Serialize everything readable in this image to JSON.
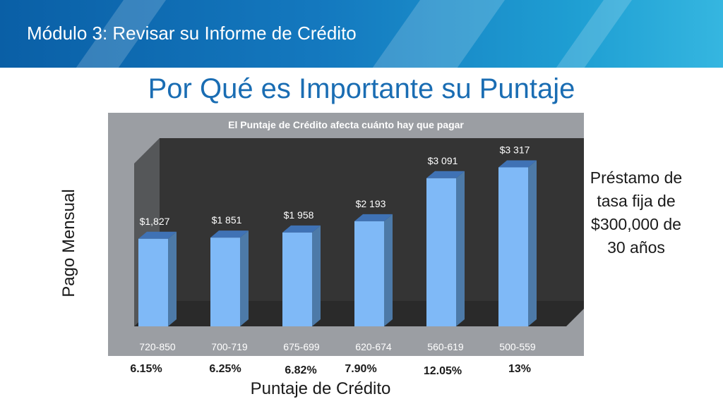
{
  "header": {
    "module_title": "Módulo 3: Revisar su Informe de Crédito"
  },
  "slide": {
    "title": "Por Qué es Importante su Puntaje",
    "side_note": "Préstamo de tasa fija de $300,000 de 30 años",
    "rates": [
      "6.15%",
      "6.25%",
      "6.82%",
      "7.90%",
      "12.05%",
      "13%"
    ]
  },
  "colors": {
    "bar_front": "#7fb9f7",
    "bar_side": "#4d7aa8",
    "bar_top": "#3f72b5",
    "plot_back": "#343434",
    "plot_floor": "#2a2a2a",
    "panel": "#9b9ea3",
    "title_blue": "#1a6db3"
  },
  "chart_data": {
    "type": "bar",
    "title": "El Puntaje de Crédito afecta cuánto hay que pagar",
    "xlabel": "Puntaje de Crédito",
    "ylabel": "Pago Mensual",
    "categories": [
      "720-850",
      "700-719",
      "675-699",
      "620-674",
      "560-619",
      "500-559"
    ],
    "values": [
      1827,
      1851,
      1958,
      2193,
      3091,
      3317
    ],
    "data_labels": [
      "$1,827",
      "$1 851",
      "$1 958",
      "$2 193",
      "$3 091",
      "$3 317"
    ],
    "ylim": [
      0,
      3500
    ],
    "grid": false,
    "legend": "none",
    "style": "3d"
  }
}
